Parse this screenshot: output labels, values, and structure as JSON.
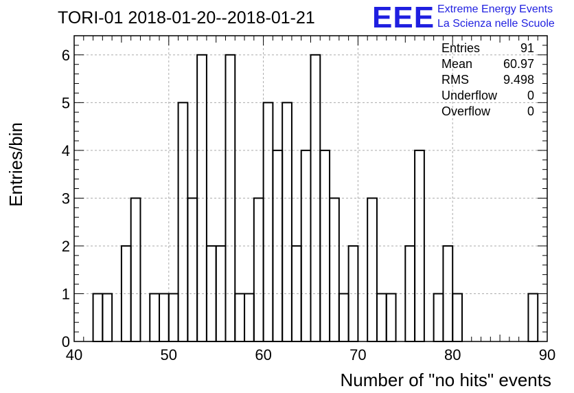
{
  "chart_data": {
    "type": "bar",
    "title": "TORI-01 2018-01-20--2018-01-21",
    "xlabel": "Number of \"no hits\" events",
    "ylabel": "Entries/bin",
    "xlim": [
      40,
      90
    ],
    "ylim": [
      0,
      6.4
    ],
    "x_ticks": [
      "40",
      "50",
      "60",
      "70",
      "80",
      "90"
    ],
    "y_ticks": [
      "0",
      "1",
      "2",
      "3",
      "4",
      "5",
      "6"
    ],
    "grid": true,
    "histogram": true,
    "bins": [
      {
        "x": 42,
        "count": 1
      },
      {
        "x": 43,
        "count": 1
      },
      {
        "x": 45,
        "count": 2
      },
      {
        "x": 46,
        "count": 3
      },
      {
        "x": 48,
        "count": 1
      },
      {
        "x": 49,
        "count": 1
      },
      {
        "x": 50,
        "count": 1
      },
      {
        "x": 51,
        "count": 5
      },
      {
        "x": 52,
        "count": 3
      },
      {
        "x": 53,
        "count": 6
      },
      {
        "x": 54,
        "count": 2
      },
      {
        "x": 55,
        "count": 2
      },
      {
        "x": 56,
        "count": 6
      },
      {
        "x": 57,
        "count": 1
      },
      {
        "x": 58,
        "count": 1
      },
      {
        "x": 59,
        "count": 3
      },
      {
        "x": 60,
        "count": 5
      },
      {
        "x": 61,
        "count": 4
      },
      {
        "x": 62,
        "count": 5
      },
      {
        "x": 63,
        "count": 2
      },
      {
        "x": 64,
        "count": 4
      },
      {
        "x": 65,
        "count": 6
      },
      {
        "x": 66,
        "count": 4
      },
      {
        "x": 67,
        "count": 3
      },
      {
        "x": 68,
        "count": 1
      },
      {
        "x": 69,
        "count": 2
      },
      {
        "x": 71,
        "count": 3
      },
      {
        "x": 72,
        "count": 1
      },
      {
        "x": 73,
        "count": 1
      },
      {
        "x": 75,
        "count": 2
      },
      {
        "x": 76,
        "count": 4
      },
      {
        "x": 78,
        "count": 1
      },
      {
        "x": 79,
        "count": 2
      },
      {
        "x": 80,
        "count": 1
      },
      {
        "x": 88,
        "count": 1
      }
    ],
    "stats": [
      {
        "label": "Entries",
        "value": "91"
      },
      {
        "label": "Mean",
        "value": "60.97"
      },
      {
        "label": "RMS",
        "value": "9.498"
      },
      {
        "label": "Underflow",
        "value": "0"
      },
      {
        "label": "Overflow",
        "value": "0"
      }
    ],
    "line_color": "#000000"
  },
  "logo": {
    "mark": "EEE",
    "line1": "Extreme Energy Events",
    "line2": "La Scienza nelle Scuole",
    "color": "#1f1fe0"
  }
}
